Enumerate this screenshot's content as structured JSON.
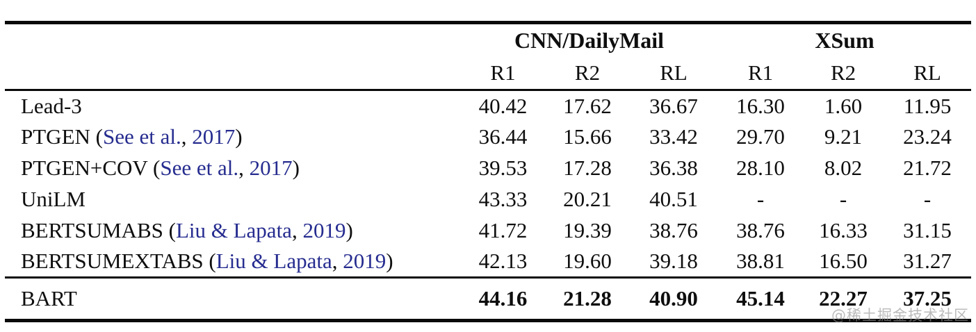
{
  "colors": {
    "text": "#0e0e0e",
    "rule": "#0a0a0a",
    "citation_link": "#262c8f",
    "watermark": "#919191"
  },
  "table": {
    "column_groups": [
      {
        "label": "CNN/DailyMail"
      },
      {
        "label": "XSum"
      }
    ],
    "sub_headers": [
      "R1",
      "R2",
      "RL",
      "R1",
      "R2",
      "RL"
    ],
    "rows": [
      {
        "model": "Lead-3",
        "cite_authors": null,
        "cite_year": null,
        "values": [
          "40.42",
          "17.62",
          "36.67",
          "16.30",
          "1.60",
          "11.95"
        ],
        "bold_values": false
      },
      {
        "model": "PTGEN",
        "cite_authors": "See et al.",
        "cite_year": "2017",
        "values": [
          "36.44",
          "15.66",
          "33.42",
          "29.70",
          "9.21",
          "23.24"
        ],
        "bold_values": false
      },
      {
        "model": "PTGEN+COV",
        "cite_authors": "See et al.",
        "cite_year": "2017",
        "values": [
          "39.53",
          "17.28",
          "36.38",
          "28.10",
          "8.02",
          "21.72"
        ],
        "bold_values": false
      },
      {
        "model": "UniLM",
        "cite_authors": null,
        "cite_year": null,
        "values": [
          "43.33",
          "20.21",
          "40.51",
          "-",
          "-",
          "-"
        ],
        "bold_values": false
      },
      {
        "model": "BERTSUMABS",
        "cite_authors": "Liu & Lapata",
        "cite_year": "2019",
        "values": [
          "41.72",
          "19.39",
          "38.76",
          "38.76",
          "16.33",
          "31.15"
        ],
        "bold_values": false
      },
      {
        "model": "BERTSUMEXTABS",
        "cite_authors": "Liu & Lapata",
        "cite_year": "2019",
        "values": [
          "42.13",
          "19.60",
          "39.18",
          "38.81",
          "16.50",
          "31.27"
        ],
        "bold_values": false
      }
    ],
    "highlight_row": {
      "model": "BART",
      "cite_authors": null,
      "cite_year": null,
      "values": [
        "44.16",
        "21.28",
        "40.90",
        "45.14",
        "22.27",
        "37.25"
      ],
      "bold_values": true
    }
  },
  "watermark": {
    "text": "@稀土掘金技术社区"
  }
}
